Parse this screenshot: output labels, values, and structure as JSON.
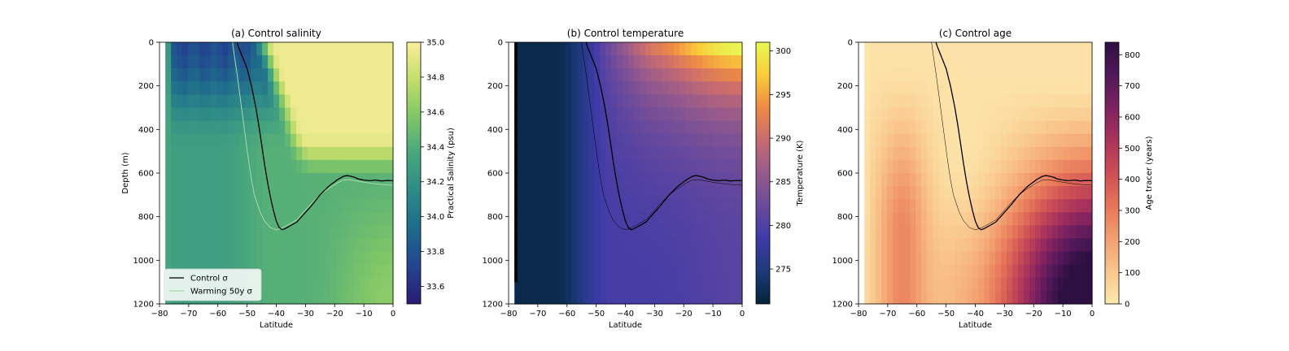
{
  "chart_data": [
    {
      "type": "heatmap",
      "panel": "a",
      "title": "(a) Control salinity",
      "xlabel": "Latitude",
      "ylabel": "Depth (m)",
      "xlim": [
        -80,
        0
      ],
      "ylim": [
        1200,
        0
      ],
      "xticks": [
        -80,
        -70,
        -60,
        -50,
        -40,
        -30,
        -20,
        -10,
        0
      ],
      "yticks": [
        0,
        200,
        400,
        600,
        800,
        1000,
        1200
      ],
      "colorbar": {
        "label": "Practical Salinity (psu)",
        "range": [
          33.5,
          35.0
        ],
        "ticks": [
          33.6,
          33.8,
          34.0,
          34.2,
          34.4,
          34.6,
          34.8,
          35.0
        ],
        "colormap": "haline",
        "colors": [
          "#2b1a73",
          "#23448f",
          "#1e6a8c",
          "#2d8a87",
          "#47a67e",
          "#7fc668",
          "#c3de6b",
          "#fbee9b"
        ]
      },
      "field_description": "Fresh water (33.7-34.1) near surface south of -50; mid values (~34.3) at depth; salty water (34.9-35.0) north of -40 above 400-500 m",
      "legend": {
        "placement": "lower left",
        "entries": [
          {
            "label": "Control σ",
            "color": "#000000"
          },
          {
            "label": "Warming 50y σ",
            "color": "#a8d8a8"
          }
        ]
      },
      "contour_label": "Control σ"
    },
    {
      "type": "heatmap",
      "panel": "b",
      "title": "(b) Control temperature",
      "xlabel": "Latitude",
      "ylabel": "",
      "xlim": [
        -80,
        0
      ],
      "ylim": [
        1200,
        0
      ],
      "xticks": [
        -80,
        -70,
        -60,
        -50,
        -40,
        -30,
        -20,
        -10,
        0
      ],
      "yticks": [
        0,
        200,
        400,
        600,
        800,
        1000,
        1200
      ],
      "colorbar": {
        "label": "Temperature (K)",
        "range": [
          271,
          301
        ],
        "ticks": [
          275,
          280,
          285,
          290,
          295,
          300
        ],
        "colormap": "thermal",
        "colors": [
          "#04233a",
          "#1c3a7a",
          "#3f3aa8",
          "#6a4a9c",
          "#975a8c",
          "#c86b70",
          "#ee8a45",
          "#fbcc3a",
          "#e8f955"
        ]
      },
      "field_description": "Cold (~272 K) water south of -55; ~278-282 K at depth north of -50; warm (296-301 K) near surface north of -20"
    },
    {
      "type": "heatmap",
      "panel": "c",
      "title": "(c) Control age",
      "xlabel": "Latitude",
      "ylabel": "",
      "xlim": [
        -80,
        0
      ],
      "ylim": [
        1200,
        0
      ],
      "xticks": [
        -80,
        -70,
        -60,
        -50,
        -40,
        -30,
        -20,
        -10,
        0
      ],
      "yticks": [
        0,
        200,
        400,
        600,
        800,
        1000,
        1200
      ],
      "colorbar": {
        "label": "Age tracer (years)",
        "range": [
          0,
          840
        ],
        "ticks": [
          0,
          100,
          200,
          300,
          400,
          500,
          600,
          700,
          800
        ],
        "colormap": "matter",
        "colors": [
          "#fde9ae",
          "#f9c68c",
          "#f39f6f",
          "#e67559",
          "#cc4f55",
          "#a9335c",
          "#7e2260",
          "#52185a",
          "#2d0f41"
        ]
      },
      "field_description": "Young water (0-100 yr) in upper ocean south of -40; old water (400-840 yr) at depth north of -30"
    }
  ],
  "contours": {
    "control_sigma": {
      "lat": [
        -53.5,
        -53,
        -51.5,
        -50,
        -48.5,
        -47,
        -46,
        -45,
        -44,
        -43,
        -42,
        -41,
        -40,
        -39,
        -38,
        -37,
        -35,
        -33,
        -31,
        -28,
        -25,
        -22,
        -19,
        -17,
        -16,
        -15,
        -13,
        -12,
        -10,
        -8,
        -6,
        -4,
        -2,
        0
      ],
      "depth": [
        0,
        20,
        70,
        120,
        200,
        300,
        380,
        470,
        560,
        640,
        710,
        770,
        820,
        850,
        860,
        855,
        840,
        825,
        795,
        750,
        700,
        660,
        630,
        615,
        612,
        613,
        620,
        627,
        632,
        635,
        632,
        636,
        634,
        635
      ]
    },
    "warming_50y_sigma": {
      "lat": [
        -55,
        -54.5,
        -53.5,
        -52.5,
        -51.5,
        -50.5,
        -49.5,
        -48.5,
        -47.5,
        -46.5,
        -45.5,
        -44,
        -42,
        -40,
        -38.5,
        -37,
        -35,
        -33,
        -31,
        -28,
        -25,
        -22,
        -19,
        -17,
        -15,
        -13,
        -10,
        -7,
        -4,
        0
      ],
      "depth": [
        0,
        50,
        140,
        240,
        340,
        440,
        540,
        630,
        700,
        740,
        780,
        820,
        850,
        860,
        855,
        845,
        830,
        815,
        785,
        740,
        700,
        670,
        645,
        632,
        630,
        635,
        642,
        648,
        652,
        656
      ]
    }
  }
}
